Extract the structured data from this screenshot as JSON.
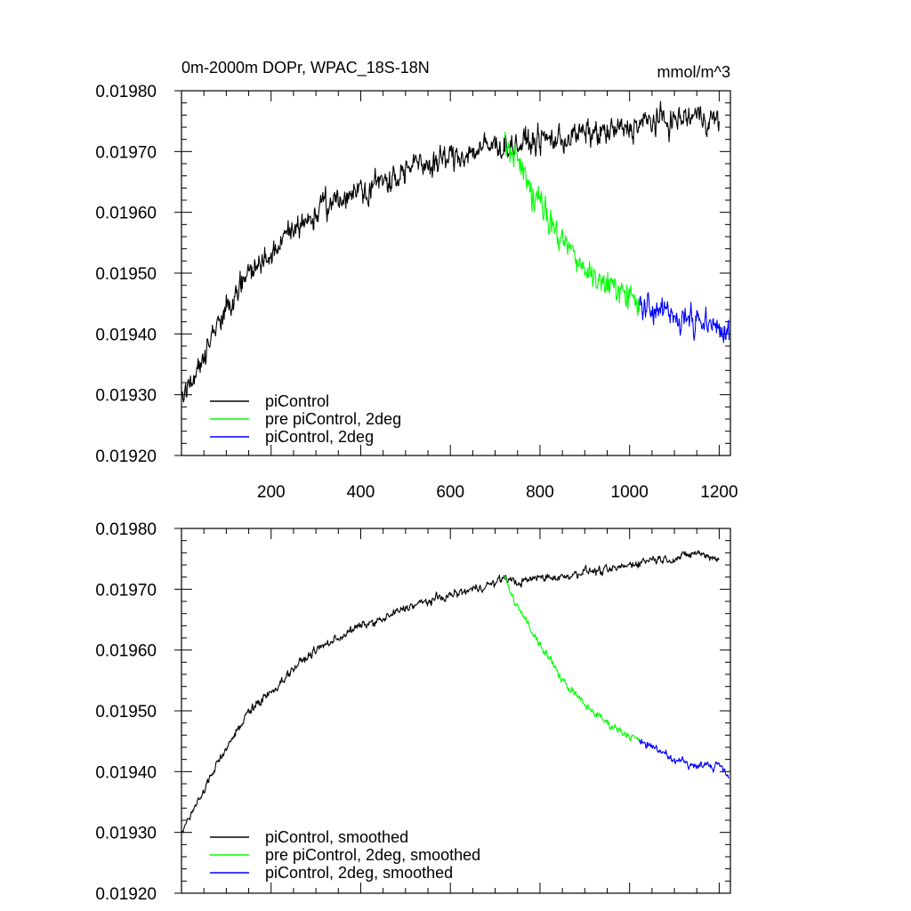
{
  "chart_data": [
    {
      "type": "line",
      "title": "0m-2000m DOPr, WPAC_18S-18N",
      "units": "mmol/m^3",
      "xlim": [
        0,
        1225
      ],
      "ylim": [
        0.0192,
        0.0198
      ],
      "x_ticks": [
        200,
        400,
        600,
        800,
        1000,
        1200
      ],
      "x_tick_labels": [
        "200",
        "400",
        "600",
        "800",
        "1000",
        "1200"
      ],
      "y_ticks": [
        0.0192,
        0.0193,
        0.0194,
        0.0195,
        0.0196,
        0.0197,
        0.0198
      ],
      "y_tick_labels": [
        "0.01920",
        "0.01930",
        "0.01940",
        "0.01950",
        "0.01960",
        "0.01970",
        "0.01980"
      ],
      "legend_position": "bottom-left",
      "series": [
        {
          "name": "piControl",
          "color": "#000000",
          "noise": 1.6e-05,
          "x": [
            1,
            50,
            100,
            150,
            200,
            250,
            300,
            350,
            400,
            450,
            500,
            550,
            600,
            650,
            700,
            720,
            750,
            800,
            850,
            900,
            950,
            1000,
            1050,
            1100,
            1150,
            1200
          ],
          "y": [
            0.01929,
            0.01937,
            0.01944,
            0.0195,
            0.01953,
            0.01957,
            0.0196,
            0.01962,
            0.01964,
            0.01965,
            0.01967,
            0.01968,
            0.01969,
            0.0197,
            0.01971,
            0.01971,
            0.01971,
            0.01972,
            0.01972,
            0.01973,
            0.01973,
            0.01974,
            0.01975,
            0.01975,
            0.01976,
            0.01975
          ]
        },
        {
          "name": "pre piControl, 2deg",
          "color": "#00ff00",
          "noise": 1.8e-05,
          "x": [
            720,
            750,
            800,
            850,
            900,
            950,
            1000,
            1022
          ],
          "y": [
            0.01972,
            0.01968,
            0.01961,
            0.01955,
            0.01951,
            0.01948,
            0.01946,
            0.01945
          ]
        },
        {
          "name": "piControl, 2deg",
          "color": "#0000ff",
          "noise": 1.6e-05,
          "x": [
            1022,
            1050,
            1100,
            1150,
            1200,
            1222
          ],
          "y": [
            0.01945,
            0.01944,
            0.01943,
            0.01942,
            0.01941,
            0.01939
          ]
        }
      ]
    },
    {
      "type": "line",
      "title": "",
      "xlim": [
        0,
        1225
      ],
      "ylim": [
        0.0192,
        0.0198
      ],
      "x_ticks": [
        200,
        400,
        600,
        800,
        1000,
        1200
      ],
      "x_tick_labels": [],
      "y_ticks": [
        0.0192,
        0.0193,
        0.0194,
        0.0195,
        0.0196,
        0.0197,
        0.0198
      ],
      "y_tick_labels": [
        "0.01920",
        "0.01930",
        "0.01940",
        "0.01950",
        "0.01960",
        "0.01970",
        "0.01980"
      ],
      "legend_position": "bottom-left",
      "series": [
        {
          "name": "piControl, smoothed",
          "color": "#000000",
          "noise": 5e-06,
          "x": [
            1,
            50,
            100,
            150,
            200,
            250,
            300,
            350,
            400,
            450,
            500,
            550,
            600,
            650,
            700,
            720,
            750,
            800,
            850,
            900,
            950,
            1000,
            1050,
            1100,
            1150,
            1200
          ],
          "y": [
            0.0193,
            0.01937,
            0.01944,
            0.0195,
            0.01953,
            0.01957,
            0.0196,
            0.01962,
            0.01964,
            0.01965,
            0.01967,
            0.01968,
            0.01969,
            0.0197,
            0.01971,
            0.01972,
            0.01971,
            0.01972,
            0.01972,
            0.01973,
            0.01973,
            0.01974,
            0.01975,
            0.01975,
            0.01976,
            0.01975
          ]
        },
        {
          "name": "pre piControl, 2deg, smoothed",
          "color": "#00ff00",
          "noise": 5e-06,
          "x": [
            720,
            750,
            800,
            850,
            900,
            950,
            1000,
            1022
          ],
          "y": [
            0.01972,
            0.01967,
            0.01961,
            0.01955,
            0.01951,
            0.01948,
            0.01946,
            0.01945
          ]
        },
        {
          "name": "piControl, 2deg, smoothed",
          "color": "#0000ff",
          "noise": 5e-06,
          "x": [
            1022,
            1050,
            1100,
            1150,
            1200,
            1222
          ],
          "y": [
            0.01945,
            0.01944,
            0.01942,
            0.01941,
            0.01941,
            0.01939
          ]
        }
      ]
    }
  ]
}
